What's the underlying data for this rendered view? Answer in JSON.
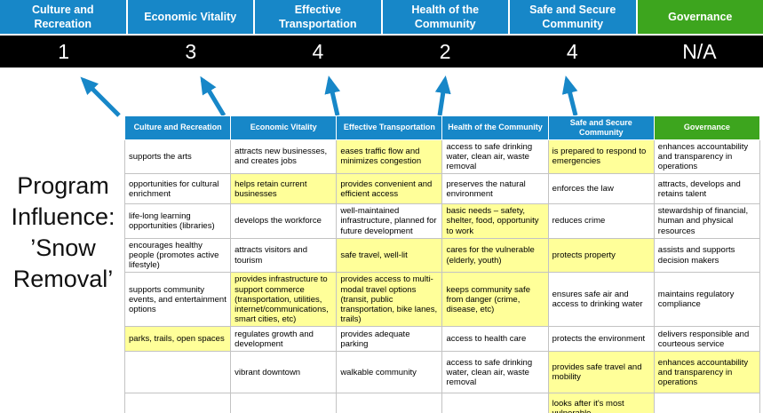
{
  "title": "Program\nInfluence:\n’Snow\nRemoval’",
  "summary": {
    "columns": [
      {
        "label": "Culture and Recreation",
        "score": "1",
        "theme": "blue"
      },
      {
        "label": "Economic Vitality",
        "score": "3",
        "theme": "blue"
      },
      {
        "label": "Effective Transportation",
        "score": "4",
        "theme": "blue"
      },
      {
        "label": "Health of the Community",
        "score": "2",
        "theme": "blue"
      },
      {
        "label": "Safe and Secure Community",
        "score": "4",
        "theme": "blue"
      },
      {
        "label": "Governance",
        "score": "N/A",
        "theme": "green"
      }
    ]
  },
  "matrix": {
    "headers": [
      "Culture and Recreation",
      "Economic Vitality",
      "Effective Transportation",
      "Health of the Community",
      "Safe and Secure Community",
      "Governance"
    ],
    "rows": [
      [
        {
          "text": "supports the arts",
          "highlight": false
        },
        {
          "text": "attracts new businesses, and creates jobs",
          "highlight": false
        },
        {
          "text": "eases traffic flow and minimizes congestion",
          "highlight": true
        },
        {
          "text": "access to safe drinking water, clean air, waste removal",
          "highlight": false
        },
        {
          "text": "is prepared to respond to emergencies",
          "highlight": true
        },
        {
          "text": "enhances accountability and transparency in operations",
          "highlight": false
        }
      ],
      [
        {
          "text": "opportunities for cultural enrichment",
          "highlight": false
        },
        {
          "text": "helps retain current businesses",
          "highlight": true
        },
        {
          "text": "provides convenient and efficient access",
          "highlight": true
        },
        {
          "text": "preserves the natural environment",
          "highlight": false
        },
        {
          "text": "enforces the law",
          "highlight": false
        },
        {
          "text": "attracts, develops and retains talent",
          "highlight": false
        }
      ],
      [
        {
          "text": "life-long learning opportunities (libraries)",
          "highlight": false
        },
        {
          "text": "develops the workforce",
          "highlight": false
        },
        {
          "text": "well-maintained infrastructure, planned for future development",
          "highlight": false
        },
        {
          "text": "basic needs – safety, shelter, food, opportunity to work",
          "highlight": true
        },
        {
          "text": "reduces crime",
          "highlight": false
        },
        {
          "text": "stewardship of financial, human and physical resources",
          "highlight": false
        }
      ],
      [
        {
          "text": "encourages healthy people (promotes active lifestyle)",
          "highlight": false
        },
        {
          "text": "attracts visitors and tourism",
          "highlight": false
        },
        {
          "text": "safe travel, well-lit",
          "highlight": true
        },
        {
          "text": "cares for the vulnerable (elderly, youth)",
          "highlight": true
        },
        {
          "text": "protects property",
          "highlight": true
        },
        {
          "text": "assists and supports decision makers",
          "highlight": false
        }
      ],
      [
        {
          "text": "supports community events, and entertainment options",
          "highlight": false
        },
        {
          "text": "provides infrastructure to support commerce (transportation, utilities, internet/communications, smart cities, etc)",
          "highlight": true
        },
        {
          "text": "provides access to multi-modal travel options (transit, public transportation, bike lanes, trails)",
          "highlight": true
        },
        {
          "text": "keeps community safe from danger (crime, disease, etc)",
          "highlight": true
        },
        {
          "text": "ensures safe air and access to drinking water",
          "highlight": false
        },
        {
          "text": "maintains regulatory compliance",
          "highlight": false
        }
      ],
      [
        {
          "text": "parks, trails, open spaces",
          "highlight": true
        },
        {
          "text": "regulates growth and development",
          "highlight": false
        },
        {
          "text": "provides adequate parking",
          "highlight": false
        },
        {
          "text": "access to health care",
          "highlight": false
        },
        {
          "text": "protects the environment",
          "highlight": false
        },
        {
          "text": "delivers responsible and courteous service",
          "highlight": false
        }
      ],
      [
        {
          "text": "",
          "highlight": false
        },
        {
          "text": "vibrant downtown",
          "highlight": false
        },
        {
          "text": "walkable community",
          "highlight": false
        },
        {
          "text": "access to safe drinking water, clean air, waste removal",
          "highlight": false
        },
        {
          "text": "provides safe travel and mobility",
          "highlight": true
        },
        {
          "text": "enhances accountability and transparency in operations",
          "highlight": true
        }
      ],
      [
        {
          "text": "",
          "highlight": false
        },
        {
          "text": "",
          "highlight": false
        },
        {
          "text": "",
          "highlight": false
        },
        {
          "text": "",
          "highlight": false
        },
        {
          "text": "looks after it's most vulnerable",
          "highlight": true
        },
        {
          "text": "",
          "highlight": false
        }
      ]
    ]
  },
  "colors": {
    "header_blue": "#1787c8",
    "header_green": "#3da51e",
    "score_bar": "#000000",
    "highlight_yellow": "#ffff99",
    "arrow_blue": "#1787c8"
  }
}
